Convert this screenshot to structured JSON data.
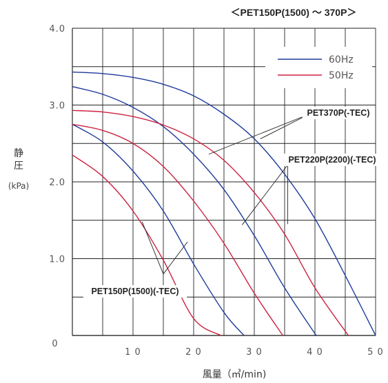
{
  "chart_data": {
    "type": "line",
    "title": "＜PET150P(1500) ～ 370P＞",
    "ylabel_chars": [
      "静",
      "圧"
    ],
    "ylabel_unit": "(kPa)",
    "xlabel": "風量（㎥/min)",
    "xlim": [
      0,
      50
    ],
    "ylim": [
      0,
      4
    ],
    "x_ticks": [
      {
        "value": 0,
        "label": "0"
      },
      {
        "value": 10,
        "label": "1 0"
      },
      {
        "value": 20,
        "label": "2 0"
      },
      {
        "value": 30,
        "label": "3 0"
      },
      {
        "value": 40,
        "label": "4 0"
      },
      {
        "value": 50,
        "label": "5 0"
      }
    ],
    "y_ticks": [
      {
        "value": 1,
        "label": "1.0"
      },
      {
        "value": 2,
        "label": "2.0"
      },
      {
        "value": 3,
        "label": "3.0"
      },
      {
        "value": 4,
        "label": "4.0"
      }
    ],
    "x_grid": [
      0,
      5,
      10,
      15,
      20,
      25,
      30,
      35,
      40,
      45,
      50
    ],
    "y_grid": [
      0.5,
      1,
      1.5,
      2,
      2.5,
      3,
      3.5,
      4
    ],
    "grid": true,
    "colors": {
      "hz60": "#1e3a9a",
      "hz50": "#cc2240"
    },
    "legend": {
      "placement": "top-right",
      "items": [
        {
          "label": "60Hz",
          "key": "hz60"
        },
        {
          "label": "50Hz",
          "key": "hz50"
        }
      ]
    },
    "series": [
      {
        "model": "PET150P(1500)(-TEC)",
        "freq": "hz50",
        "x": [
          0,
          5,
          10,
          15,
          20,
          24.5
        ],
        "y": [
          2.35,
          2.07,
          1.62,
          0.98,
          0.22,
          0
        ]
      },
      {
        "model": "PET150P(1500)(-TEC)",
        "freq": "hz60",
        "x": [
          0,
          5,
          10,
          15,
          20,
          25,
          28.3
        ],
        "y": [
          2.75,
          2.52,
          2.14,
          1.62,
          0.93,
          0.3,
          0
        ]
      },
      {
        "model": "PET220P(2200)(-TEC)",
        "freq": "hz50",
        "x": [
          0,
          5,
          10,
          15,
          20,
          25,
          30,
          34.7
        ],
        "y": [
          2.75,
          2.67,
          2.5,
          2.2,
          1.75,
          1.2,
          0.55,
          0
        ]
      },
      {
        "model": "PET220P(2200)(-TEC)",
        "freq": "hz60",
        "x": [
          0,
          5,
          10,
          15,
          20,
          25,
          30,
          35,
          40.2
        ],
        "y": [
          3.24,
          3.14,
          2.97,
          2.72,
          2.36,
          1.9,
          1.3,
          0.62,
          0
        ]
      },
      {
        "model": "PET370P(-TEC)",
        "freq": "hz50",
        "x": [
          0,
          5,
          10,
          15,
          20,
          25,
          30,
          35,
          40,
          45.5
        ],
        "y": [
          2.93,
          2.91,
          2.85,
          2.74,
          2.56,
          2.28,
          1.86,
          1.32,
          0.62,
          0
        ]
      },
      {
        "model": "PET370P(-TEC)",
        "freq": "hz60",
        "x": [
          0,
          5,
          10,
          15,
          20,
          25,
          30,
          35,
          40,
          45,
          50
        ],
        "y": [
          3.43,
          3.41,
          3.36,
          3.27,
          3.12,
          2.88,
          2.56,
          2.1,
          1.52,
          0.78,
          0
        ]
      }
    ],
    "annotations": [
      {
        "text": "PET370P(-TEC)",
        "anchor": [
          39,
          2.88
        ],
        "targets": [
          [
            22.5,
            2.36
          ],
          [
            31,
            2.56
          ]
        ]
      },
      {
        "text": "PET220P(2200)(-TEC)",
        "anchor": [
          35.5,
          2.22
        ],
        "targets": [
          [
            28,
            1.44
          ],
          [
            35.5,
            1.45
          ]
        ]
      },
      {
        "text": "PET150P(1500)(-TEC)",
        "anchor": [
          15,
          0.8
        ],
        "targets": [
          [
            11.5,
            1.48
          ],
          [
            19,
            1.22
          ]
        ]
      }
    ]
  }
}
